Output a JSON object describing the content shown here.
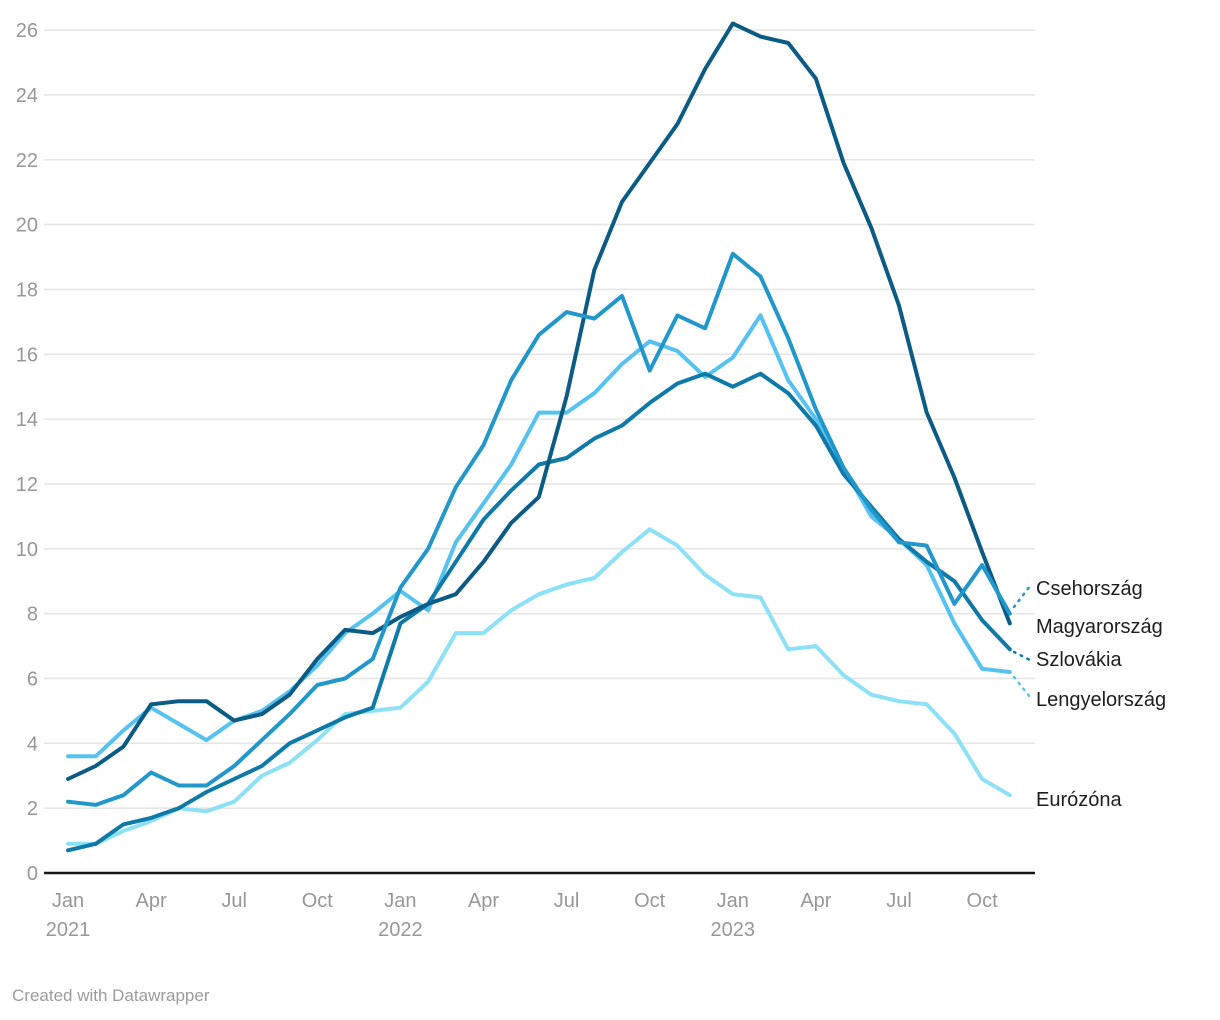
{
  "footer": {
    "credit": "Created with Datawrapper"
  },
  "chart_data": {
    "type": "line",
    "title": "",
    "xlabel": "",
    "ylabel": "",
    "ylim": [
      0,
      26
    ],
    "ytick_step": 2,
    "grid": true,
    "legend_position": "right-direct-labels",
    "grid_color": "#e6e6e6",
    "axis_line_color": "#161616",
    "tick_label_color": "#979797",
    "x_labels": [
      "Jan 2021",
      "Feb 2021",
      "Mar 2021",
      "Apr 2021",
      "May 2021",
      "Jun 2021",
      "Jul 2021",
      "Aug 2021",
      "Sep 2021",
      "Oct 2021",
      "Nov 2021",
      "Dec 2021",
      "Jan 2022",
      "Feb 2022",
      "Mar 2022",
      "Apr 2022",
      "May 2022",
      "Jun 2022",
      "Jul 2022",
      "Aug 2022",
      "Sep 2022",
      "Oct 2022",
      "Nov 2022",
      "Dec 2022",
      "Jan 2023",
      "Feb 2023",
      "Mar 2023",
      "Apr 2023",
      "May 2023",
      "Jun 2023",
      "Jul 2023",
      "Aug 2023",
      "Sep 2023",
      "Oct 2023",
      "Nov 2023"
    ],
    "x_tick_every": 3,
    "series": [
      {
        "name": "Csehország",
        "color": "#2297CB",
        "z": 5,
        "connector": [
          [
            1014,
            607
          ],
          [
            1030,
            586
          ]
        ],
        "values": [
          2.2,
          2.1,
          2.4,
          3.1,
          2.7,
          2.7,
          3.3,
          4.1,
          4.9,
          5.8,
          6.0,
          6.6,
          8.8,
          10.0,
          11.9,
          13.2,
          15.2,
          16.6,
          17.3,
          17.1,
          17.8,
          15.5,
          17.2,
          16.8,
          19.1,
          18.4,
          16.5,
          14.3,
          12.5,
          11.2,
          10.2,
          10.1,
          8.3,
          9.5,
          8.0
        ]
      },
      {
        "name": "Magyarország",
        "color": "#0B5B84",
        "z": 4,
        "connector": null,
        "values": [
          2.9,
          3.3,
          3.9,
          5.2,
          5.3,
          5.3,
          4.7,
          4.9,
          5.5,
          6.6,
          7.5,
          7.4,
          7.9,
          8.3,
          8.6,
          9.6,
          10.8,
          11.6,
          14.7,
          18.6,
          20.7,
          21.9,
          23.1,
          24.8,
          26.2,
          25.8,
          25.6,
          24.5,
          21.9,
          19.9,
          17.5,
          14.2,
          12.2,
          9.9,
          7.7
        ]
      },
      {
        "name": "Szlovákia",
        "color": "#0F7AA8",
        "z": 3,
        "connector": [
          [
            1014,
            652
          ],
          [
            1030,
            660
          ]
        ],
        "values": [
          0.7,
          0.9,
          1.5,
          1.7,
          2.0,
          2.5,
          2.9,
          3.3,
          4.0,
          4.4,
          4.8,
          5.1,
          7.7,
          8.3,
          9.6,
          10.9,
          11.8,
          12.6,
          12.8,
          13.4,
          13.8,
          14.5,
          15.1,
          15.4,
          15.0,
          15.4,
          14.8,
          13.8,
          12.3,
          11.3,
          10.3,
          9.6,
          9.0,
          7.8,
          6.9
        ]
      },
      {
        "name": "Lengyelország",
        "color": "#56C2F0",
        "z": 2,
        "connector": [
          [
            1014,
            677
          ],
          [
            1030,
            697
          ]
        ],
        "values": [
          3.6,
          3.6,
          4.4,
          5.1,
          4.6,
          4.1,
          4.7,
          5.0,
          5.6,
          6.4,
          7.4,
          8.0,
          8.7,
          8.1,
          10.2,
          11.4,
          12.6,
          14.2,
          14.2,
          14.8,
          15.7,
          16.4,
          16.1,
          15.3,
          15.9,
          17.2,
          15.2,
          14.0,
          12.5,
          11.0,
          10.3,
          9.5,
          7.7,
          6.3,
          6.2
        ]
      },
      {
        "name": "Eurózóna",
        "color": "#8CE1F7",
        "z": 1,
        "connector": null,
        "values": [
          0.9,
          0.9,
          1.3,
          1.6,
          2.0,
          1.9,
          2.2,
          3.0,
          3.4,
          4.1,
          4.9,
          5.0,
          5.1,
          5.9,
          7.4,
          7.4,
          8.1,
          8.6,
          8.9,
          9.1,
          9.9,
          10.6,
          10.1,
          9.2,
          8.6,
          8.5,
          6.9,
          7.0,
          6.1,
          5.5,
          5.3,
          5.2,
          4.3,
          2.9,
          2.4
        ]
      }
    ]
  }
}
